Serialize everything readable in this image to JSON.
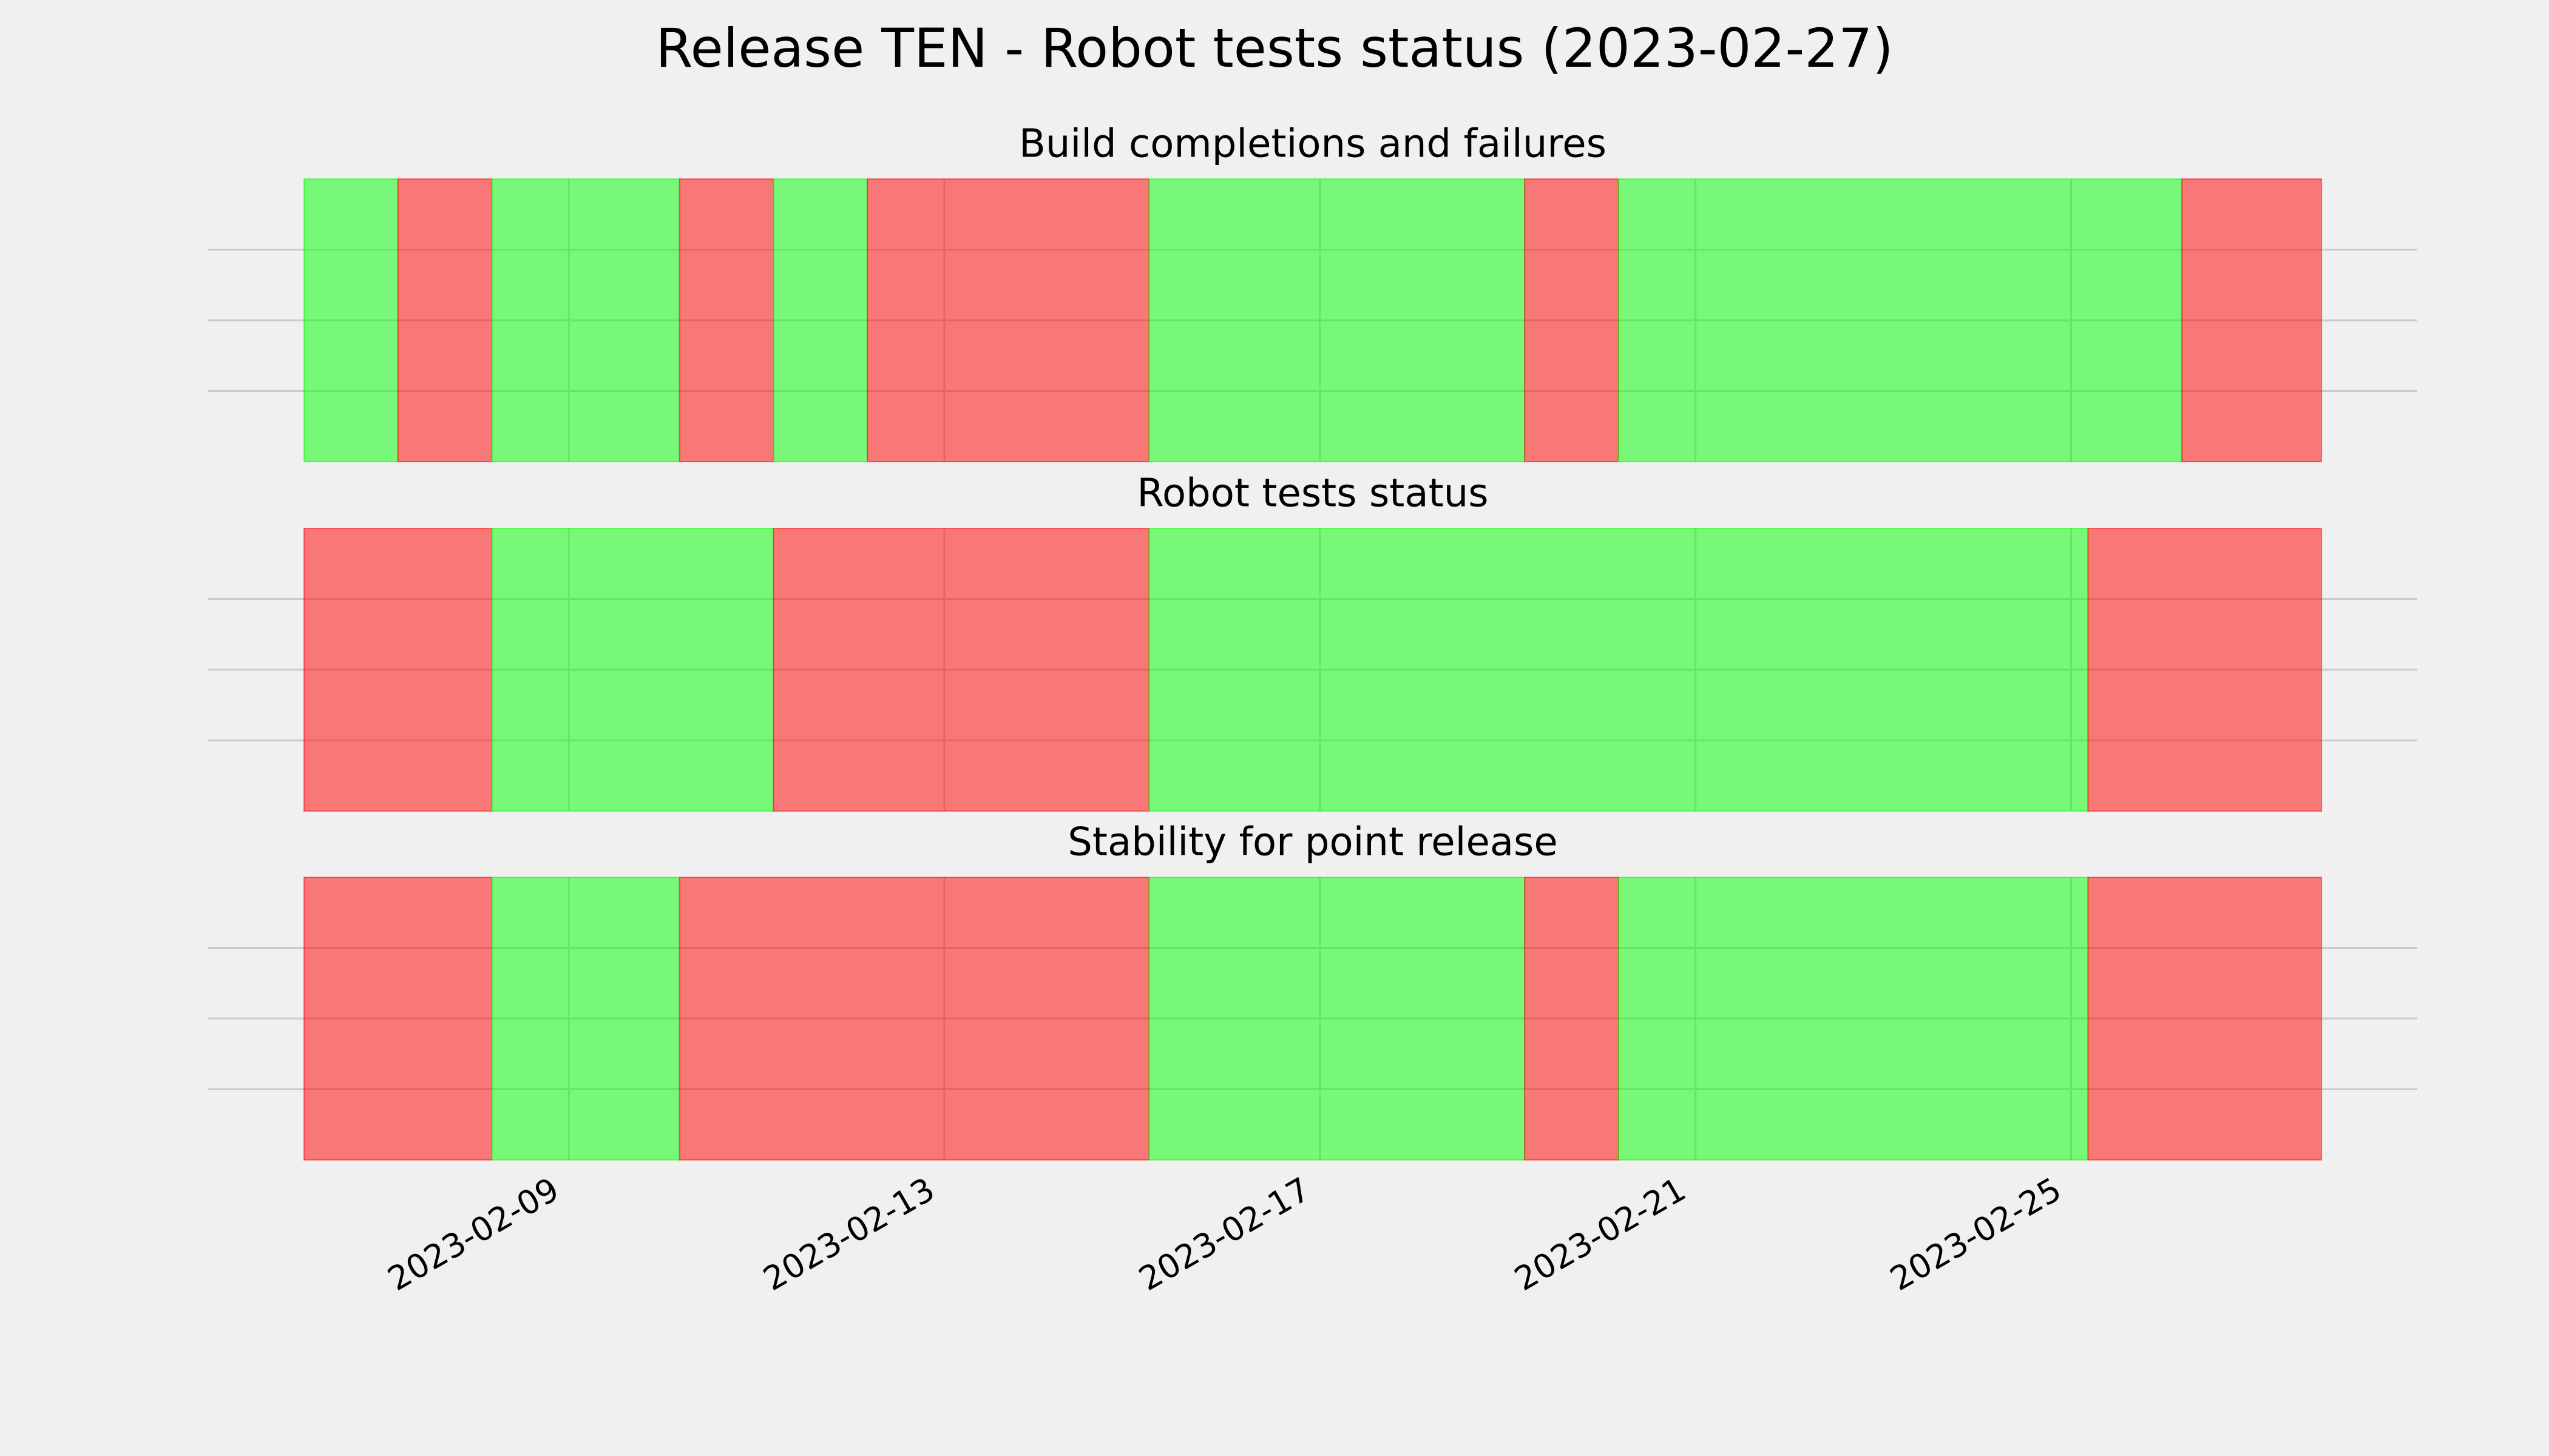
{
  "title": "Release TEN - Robot tests status (2023-02-27)",
  "chart_data": [
    {
      "type": "timeline",
      "title": "Build completions and failures",
      "alpha": 0.5,
      "grid": true,
      "xlim": [
        "2023-02-05T03:50",
        "2023-02-28T16:30"
      ],
      "ylim": [
        0,
        1
      ],
      "yticks": [
        0.25,
        0.5,
        0.75
      ],
      "segments": [
        {
          "start": "2023-02-06T04:20",
          "end": "2023-02-07T04:20",
          "color": "#00ff00"
        },
        {
          "start": "2023-02-07T04:20",
          "end": "2023-02-08T04:20",
          "color": "#ff0000"
        },
        {
          "start": "2023-02-08T04:20",
          "end": "2023-02-10T04:20",
          "color": "#00ff00"
        },
        {
          "start": "2023-02-10T04:20",
          "end": "2023-02-11T04:20",
          "color": "#ff0000"
        },
        {
          "start": "2023-02-11T04:20",
          "end": "2023-02-12T04:20",
          "color": "#00ff00"
        },
        {
          "start": "2023-02-12T04:20",
          "end": "2023-02-15T04:20",
          "color": "#ff0000"
        },
        {
          "start": "2023-02-15T04:20",
          "end": "2023-02-19T04:20",
          "color": "#00ff00"
        },
        {
          "start": "2023-02-19T04:20",
          "end": "2023-02-20T04:20",
          "color": "#ff0000"
        },
        {
          "start": "2023-02-20T04:20",
          "end": "2023-02-26T04:20",
          "color": "#00ff00"
        },
        {
          "start": "2023-02-26T04:20",
          "end": "2023-02-27T16:00",
          "color": "#ff0000"
        }
      ]
    },
    {
      "type": "timeline",
      "title": "Robot tests status",
      "alpha": 0.5,
      "grid": true,
      "xlim": [
        "2023-02-05T03:50",
        "2023-02-28T16:30"
      ],
      "ylim": [
        0,
        1
      ],
      "yticks": [
        0.25,
        0.5,
        0.75
      ],
      "segments": [
        {
          "start": "2023-02-06T04:20",
          "end": "2023-02-08T04:20",
          "color": "#ff0000"
        },
        {
          "start": "2023-02-08T04:20",
          "end": "2023-02-11T04:20",
          "color": "#00ff00"
        },
        {
          "start": "2023-02-11T04:20",
          "end": "2023-02-15T04:20",
          "color": "#ff0000"
        },
        {
          "start": "2023-02-15T04:20",
          "end": "2023-02-25T04:20",
          "color": "#00ff00"
        },
        {
          "start": "2023-02-25T04:20",
          "end": "2023-02-27T16:00",
          "color": "#ff0000"
        }
      ]
    },
    {
      "type": "timeline",
      "title": "Stability for point release",
      "alpha": 0.5,
      "grid": true,
      "xlim": [
        "2023-02-05T03:50",
        "2023-02-28T16:30"
      ],
      "ylim": [
        0,
        1
      ],
      "yticks": [
        0.25,
        0.5,
        0.75
      ],
      "xticks": [
        "2023-02-09",
        "2023-02-13",
        "2023-02-17",
        "2023-02-21",
        "2023-02-25"
      ],
      "segments": [
        {
          "start": "2023-02-06T04:20",
          "end": "2023-02-08T04:20",
          "color": "#ff0000"
        },
        {
          "start": "2023-02-08T04:20",
          "end": "2023-02-10T04:20",
          "color": "#00ff00"
        },
        {
          "start": "2023-02-10T04:20",
          "end": "2023-02-15T04:20",
          "color": "#ff0000"
        },
        {
          "start": "2023-02-15T04:20",
          "end": "2023-02-19T04:20",
          "color": "#00ff00"
        },
        {
          "start": "2023-02-19T04:20",
          "end": "2023-02-20T04:20",
          "color": "#ff0000"
        },
        {
          "start": "2023-02-20T04:20",
          "end": "2023-02-25T04:20",
          "color": "#00ff00"
        },
        {
          "start": "2023-02-25T04:20",
          "end": "2023-02-27T16:00",
          "color": "#ff0000"
        }
      ]
    }
  ]
}
